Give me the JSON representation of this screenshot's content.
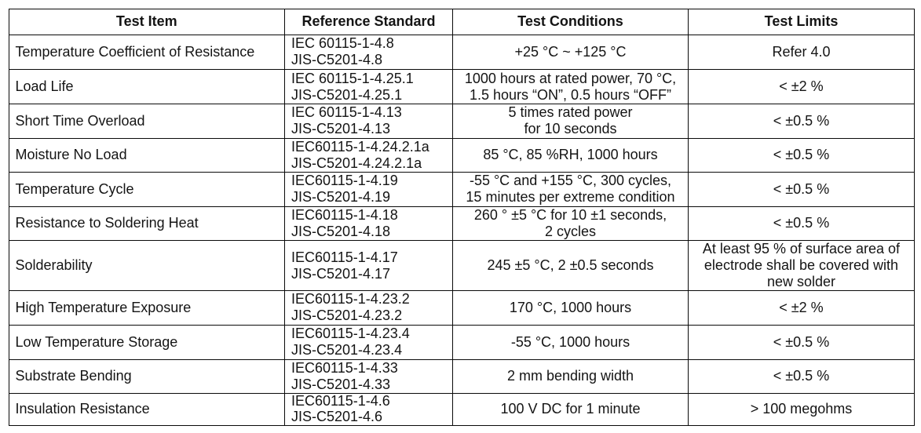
{
  "document": {
    "type": "datasheet-reliability-table",
    "background_color": "#ffffff",
    "text_color": "#141414",
    "grid_color": "#0a0a0a"
  },
  "table": {
    "columns": [
      "Test Item",
      "Reference Standard",
      "Test Conditions",
      "Test Limits"
    ],
    "rows": [
      {
        "test_item": "Temperature Coefficient of Resistance",
        "reference_standard": "IEC 60115-1-4.8\nJIS-C5201-4.8",
        "test_conditions": "+25 °C ~ +125 °C",
        "test_limits": "Refer 4.0"
      },
      {
        "test_item": "Load Life",
        "reference_standard": "IEC 60115-1-4.25.1\nJIS-C5201-4.25.1",
        "test_conditions": "1000 hours at rated power, 70 °C,\n1.5 hours “ON”, 0.5 hours “OFF”",
        "test_limits": "< ±2 %"
      },
      {
        "test_item": "Short Time Overload",
        "reference_standard": "IEC 60115-1-4.13\nJIS-C5201-4.13",
        "test_conditions": "5 times rated power\nfor 10 seconds",
        "test_limits": "< ±0.5 %"
      },
      {
        "test_item": "Moisture No Load",
        "reference_standard": "IEC60115-1-4.24.2.1a\nJIS-C5201-4.24.2.1a",
        "test_conditions": "85 °C, 85 %RH, 1000 hours",
        "test_limits": "< ±0.5 %"
      },
      {
        "test_item": "Temperature Cycle",
        "reference_standard": "IEC60115-1-4.19\nJIS-C5201-4.19",
        "test_conditions": "-55 °C and +155 °C, 300 cycles,\n15 minutes per extreme condition",
        "test_limits": "< ±0.5 %"
      },
      {
        "test_item": "Resistance to Soldering Heat",
        "reference_standard": "IEC60115-1-4.18\nJIS-C5201-4.18",
        "test_conditions": "260 ° ±5 °C for 10 ±1 seconds,\n2 cycles",
        "test_limits": "< ±0.5 %"
      },
      {
        "test_item": "Solderability",
        "reference_standard": "IEC60115-1-4.17\nJIS-C5201-4.17",
        "test_conditions": "245 ±5 °C, 2 ±0.5 seconds",
        "test_limits": "At least 95 % of surface area of\nelectrode shall be covered with\nnew solder"
      },
      {
        "test_item": "High Temperature Exposure",
        "reference_standard": "IEC60115-1-4.23.2\nJIS-C5201-4.23.2",
        "test_conditions": "170 °C, 1000 hours",
        "test_limits": "< ±2 %"
      },
      {
        "test_item": "Low Temperature Storage",
        "reference_standard": "IEC60115-1-4.23.4\nJIS-C5201-4.23.4",
        "test_conditions": "-55 °C, 1000 hours",
        "test_limits": "< ±0.5 %"
      },
      {
        "test_item": "Substrate Bending",
        "reference_standard": "IEC60115-1-4.33\nJIS-C5201-4.33",
        "test_conditions": "2 mm bending width",
        "test_limits": "< ±0.5 %"
      },
      {
        "test_item": "Insulation Resistance",
        "reference_standard": "IEC60115-1-4.6\nJIS-C5201-4.6",
        "test_conditions": "100 V DC for 1 minute",
        "test_limits": "> 100 megohms"
      }
    ]
  }
}
